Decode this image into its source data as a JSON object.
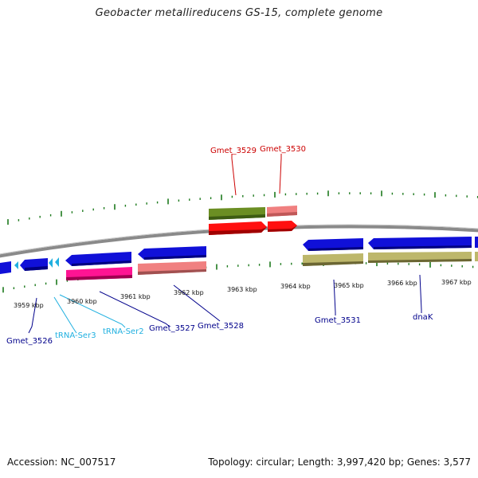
{
  "title": "Geobacter metallireducens GS-15, complete genome",
  "footer": {
    "accession": "Accession: NC_007517",
    "summary": "Topology: circular; Length: 3,997,420 bp; Genes: 3,577"
  },
  "colors": {
    "tick": "#1d7a1d",
    "backbone": "#8a8a8a",
    "blue_gene": "#1010d8",
    "red_gene": "#ff1010",
    "pink_gene": "#f08080",
    "magenta_gene": "#ff1493",
    "olive_gene": "#6b8e23",
    "khaki_gene": "#bdb76b",
    "trna": "#20b0e0",
    "label_red": "#cc0000",
    "label_blue": "#00008b",
    "label_cyan": "#20b0e0"
  },
  "scale_labels": [
    "3959 kbp",
    "3960 kbp",
    "3961 kbp",
    "3962 kbp",
    "3963 kbp",
    "3964 kbp",
    "3965 kbp",
    "3966 kbp",
    "3967 kbp"
  ],
  "gene_labels": [
    {
      "name": "Gmet_3529",
      "color": "label_red"
    },
    {
      "name": "Gmet_3530",
      "color": "label_red"
    },
    {
      "name": "Gmet_3526",
      "color": "label_blue"
    },
    {
      "name": "tRNA-Ser3",
      "color": "label_cyan"
    },
    {
      "name": "tRNA-Ser2",
      "color": "label_cyan"
    },
    {
      "name": "Gmet_3527",
      "color": "label_blue"
    },
    {
      "name": "Gmet_3528",
      "color": "label_blue"
    },
    {
      "name": "Gmet_3531",
      "color": "label_blue"
    },
    {
      "name": "dnaK",
      "color": "label_blue"
    }
  ]
}
